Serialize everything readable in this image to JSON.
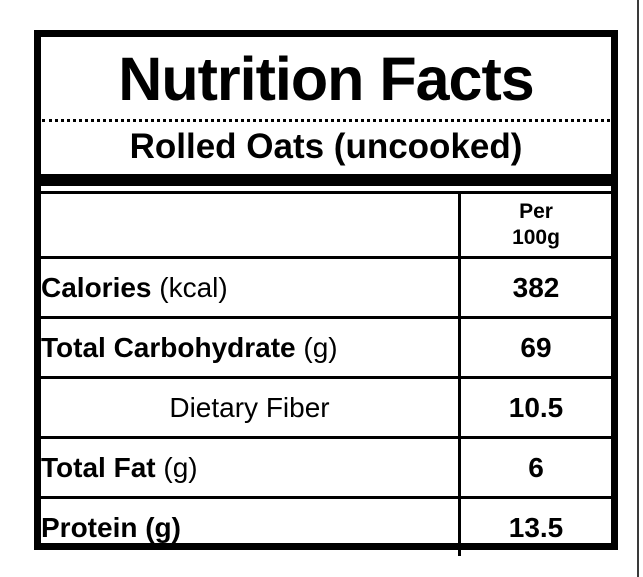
{
  "colors": {
    "ink": "#000000",
    "background": "#ffffff"
  },
  "label": {
    "title": "Nutrition Facts",
    "subtitle": "Rolled Oats (uncooked)",
    "table": {
      "value_header_line1": "Per",
      "value_header_line2": "100g",
      "rows": [
        {
          "name": "Calories",
          "unit": " (kcal)",
          "value": "382"
        },
        {
          "name": "Total Carbohydrate",
          "unit": " (g)",
          "value": "69"
        },
        {
          "name": "Dietary Fiber",
          "unit": "",
          "value": "10.5"
        },
        {
          "name": "Total Fat",
          "unit": " (g)",
          "value": "6"
        },
        {
          "name": "Protein (g)",
          "unit": "",
          "value": "13.5"
        }
      ]
    }
  }
}
